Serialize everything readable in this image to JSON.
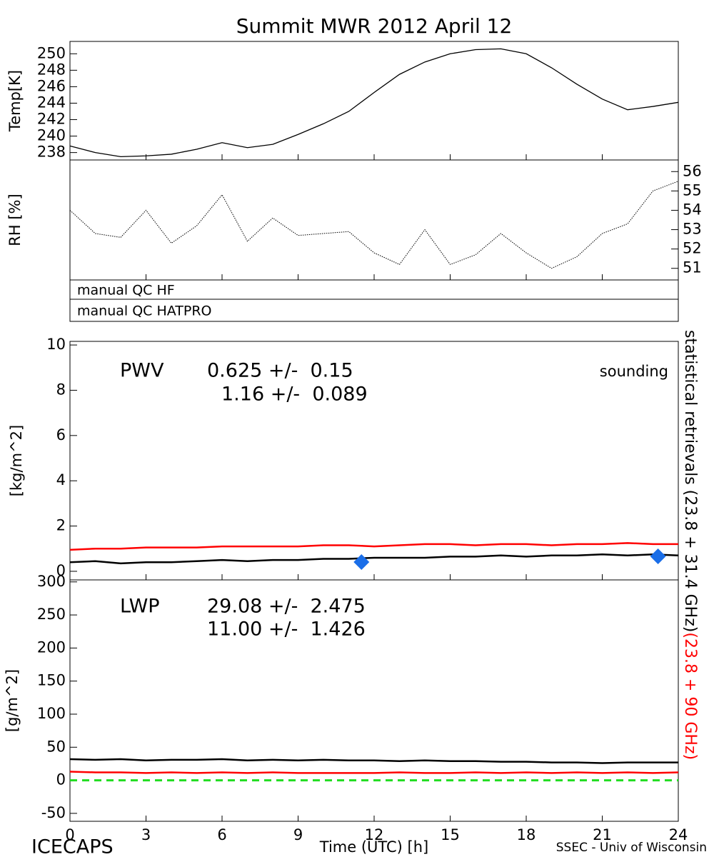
{
  "page": {
    "title": "Summit MWR 2012 April 12",
    "footer_left": "ICECAPS",
    "footer_right": "SSEC - Univ of Wisconsin",
    "qc_labels": [
      "manual QC HF",
      "manual QC HATPRO"
    ],
    "side_label": {
      "parts": [
        {
          "text": "statistical retrievals (23.8 + 31.4 GHz)",
          "color": "#000000"
        },
        {
          "text": "(23.8 + 90 GHz)",
          "color": "#ff0000"
        }
      ]
    }
  },
  "chart_data": [
    {
      "type": "line",
      "ylabel": "Temp[K]",
      "yaxis_side": "left",
      "xlim": [
        0,
        24
      ],
      "xticks": [
        0,
        3,
        6,
        9,
        12,
        15,
        18,
        21,
        24
      ],
      "ylim": [
        237.1,
        251.5
      ],
      "yticks": [
        238,
        240,
        242,
        244,
        246,
        248,
        250
      ],
      "x": [
        0,
        1,
        2,
        3,
        4,
        5,
        6,
        7,
        8,
        9,
        10,
        11,
        12,
        13,
        14,
        15,
        16,
        17,
        18,
        19,
        20,
        21,
        22,
        23,
        24
      ],
      "series": [
        {
          "name": "Temp",
          "color": "#000000",
          "width": 1.3,
          "values": [
            238.8,
            238.0,
            237.5,
            237.6,
            237.8,
            238.4,
            239.2,
            238.6,
            239.0,
            240.2,
            241.5,
            243.0,
            245.3,
            247.5,
            249.0,
            250.0,
            250.5,
            250.6,
            250.0,
            248.3,
            246.3,
            244.5,
            243.2,
            243.6,
            244.1
          ]
        }
      ]
    },
    {
      "type": "line",
      "ylabel": "RH [%]",
      "yaxis_side": "right",
      "xlim": [
        0,
        24
      ],
      "xticks": [
        0,
        3,
        6,
        9,
        12,
        15,
        18,
        21,
        24
      ],
      "ylim": [
        50.4,
        56.6
      ],
      "yticks": [
        51,
        52,
        53,
        54,
        55,
        56
      ],
      "x": [
        0,
        1,
        2,
        3,
        4,
        5,
        6,
        7,
        8,
        9,
        10,
        11,
        12,
        13,
        14,
        15,
        16,
        17,
        18,
        19,
        20,
        21,
        22,
        23,
        24
      ],
      "series": [
        {
          "name": "RH",
          "color": "#000000",
          "width": 1,
          "dotted": true,
          "values": [
            54.0,
            52.8,
            52.6,
            54.0,
            52.3,
            53.2,
            54.8,
            52.4,
            53.6,
            52.7,
            52.8,
            52.9,
            51.8,
            51.2,
            53.0,
            51.2,
            51.7,
            52.8,
            51.8,
            51.0,
            51.6,
            52.8,
            53.3,
            55.0,
            55.5
          ]
        }
      ]
    },
    {
      "type": "line",
      "ylabel": "[kg/m^2]",
      "yaxis_side": "left",
      "xlim": [
        0,
        24
      ],
      "xticks": [
        0,
        3,
        6,
        9,
        12,
        15,
        18,
        21,
        24
      ],
      "ylim": [
        -0.38,
        10.16
      ],
      "yticks": [
        0,
        2,
        4,
        6,
        8,
        10
      ],
      "annotations": [
        {
          "text": "PWV",
          "color": "#000000"
        },
        {
          "text": "0.625 +/-  0.15",
          "color": "#000000"
        },
        {
          "text": "1.16 +/-  0.089",
          "color": "#ff0000"
        }
      ],
      "x": [
        0,
        1,
        2,
        3,
        4,
        5,
        6,
        7,
        8,
        9,
        10,
        11,
        12,
        13,
        14,
        15,
        16,
        17,
        18,
        19,
        20,
        21,
        22,
        23,
        24
      ],
      "series": [
        {
          "color": "#000000",
          "width": 2.5,
          "values": [
            0.4,
            0.45,
            0.35,
            0.4,
            0.4,
            0.45,
            0.5,
            0.45,
            0.5,
            0.5,
            0.55,
            0.55,
            0.6,
            0.6,
            0.6,
            0.65,
            0.65,
            0.7,
            0.65,
            0.7,
            0.7,
            0.75,
            0.7,
            0.75,
            0.7
          ]
        },
        {
          "color": "#ff0000",
          "width": 2.5,
          "values": [
            0.95,
            1.0,
            1.0,
            1.05,
            1.05,
            1.05,
            1.1,
            1.1,
            1.1,
            1.1,
            1.15,
            1.15,
            1.1,
            1.15,
            1.2,
            1.2,
            1.15,
            1.2,
            1.2,
            1.15,
            1.2,
            1.2,
            1.25,
            1.2,
            1.2
          ]
        }
      ],
      "points": {
        "name": "sounding",
        "color": "#1a6ee8",
        "x": [
          11.5,
          23.2
        ],
        "values": [
          0.41,
          0.66
        ]
      }
    },
    {
      "type": "line",
      "ylabel": "[g/m^2]",
      "xlabel": "Time (UTC) [h]",
      "yaxis_side": "left",
      "show_xtick_labels": true,
      "xlim": [
        0,
        24
      ],
      "xticks": [
        0,
        3,
        6,
        9,
        12,
        15,
        18,
        21,
        24
      ],
      "ylim": [
        -62,
        303
      ],
      "yticks": [
        -50,
        0,
        50,
        100,
        150,
        200,
        250,
        300
      ],
      "annotations": [
        {
          "text": "LWP",
          "color": "#000000"
        },
        {
          "text": "29.08 +/-  2.475",
          "color": "#000000"
        },
        {
          "text": "11.00 +/-  1.426",
          "color": "#ff0000"
        }
      ],
      "hlines": [
        {
          "value": 0,
          "color": "#22dd22",
          "dashed": true
        }
      ],
      "x": [
        0,
        1,
        2,
        3,
        4,
        5,
        6,
        7,
        8,
        9,
        10,
        11,
        12,
        13,
        14,
        15,
        16,
        17,
        18,
        19,
        20,
        21,
        22,
        23,
        24
      ],
      "series": [
        {
          "color": "#000000",
          "width": 2.5,
          "values": [
            32,
            31,
            32,
            30,
            31,
            31,
            32,
            30,
            31,
            30,
            31,
            30,
            30,
            29,
            30,
            29,
            29,
            28,
            28,
            27,
            27,
            26,
            27,
            27,
            27
          ]
        },
        {
          "color": "#ff0000",
          "width": 2.5,
          "values": [
            13,
            12,
            12,
            11,
            12,
            11,
            12,
            11,
            12,
            11,
            11,
            11,
            11,
            12,
            11,
            11,
            12,
            11,
            12,
            11,
            12,
            11,
            12,
            11,
            12
          ]
        }
      ]
    }
  ]
}
